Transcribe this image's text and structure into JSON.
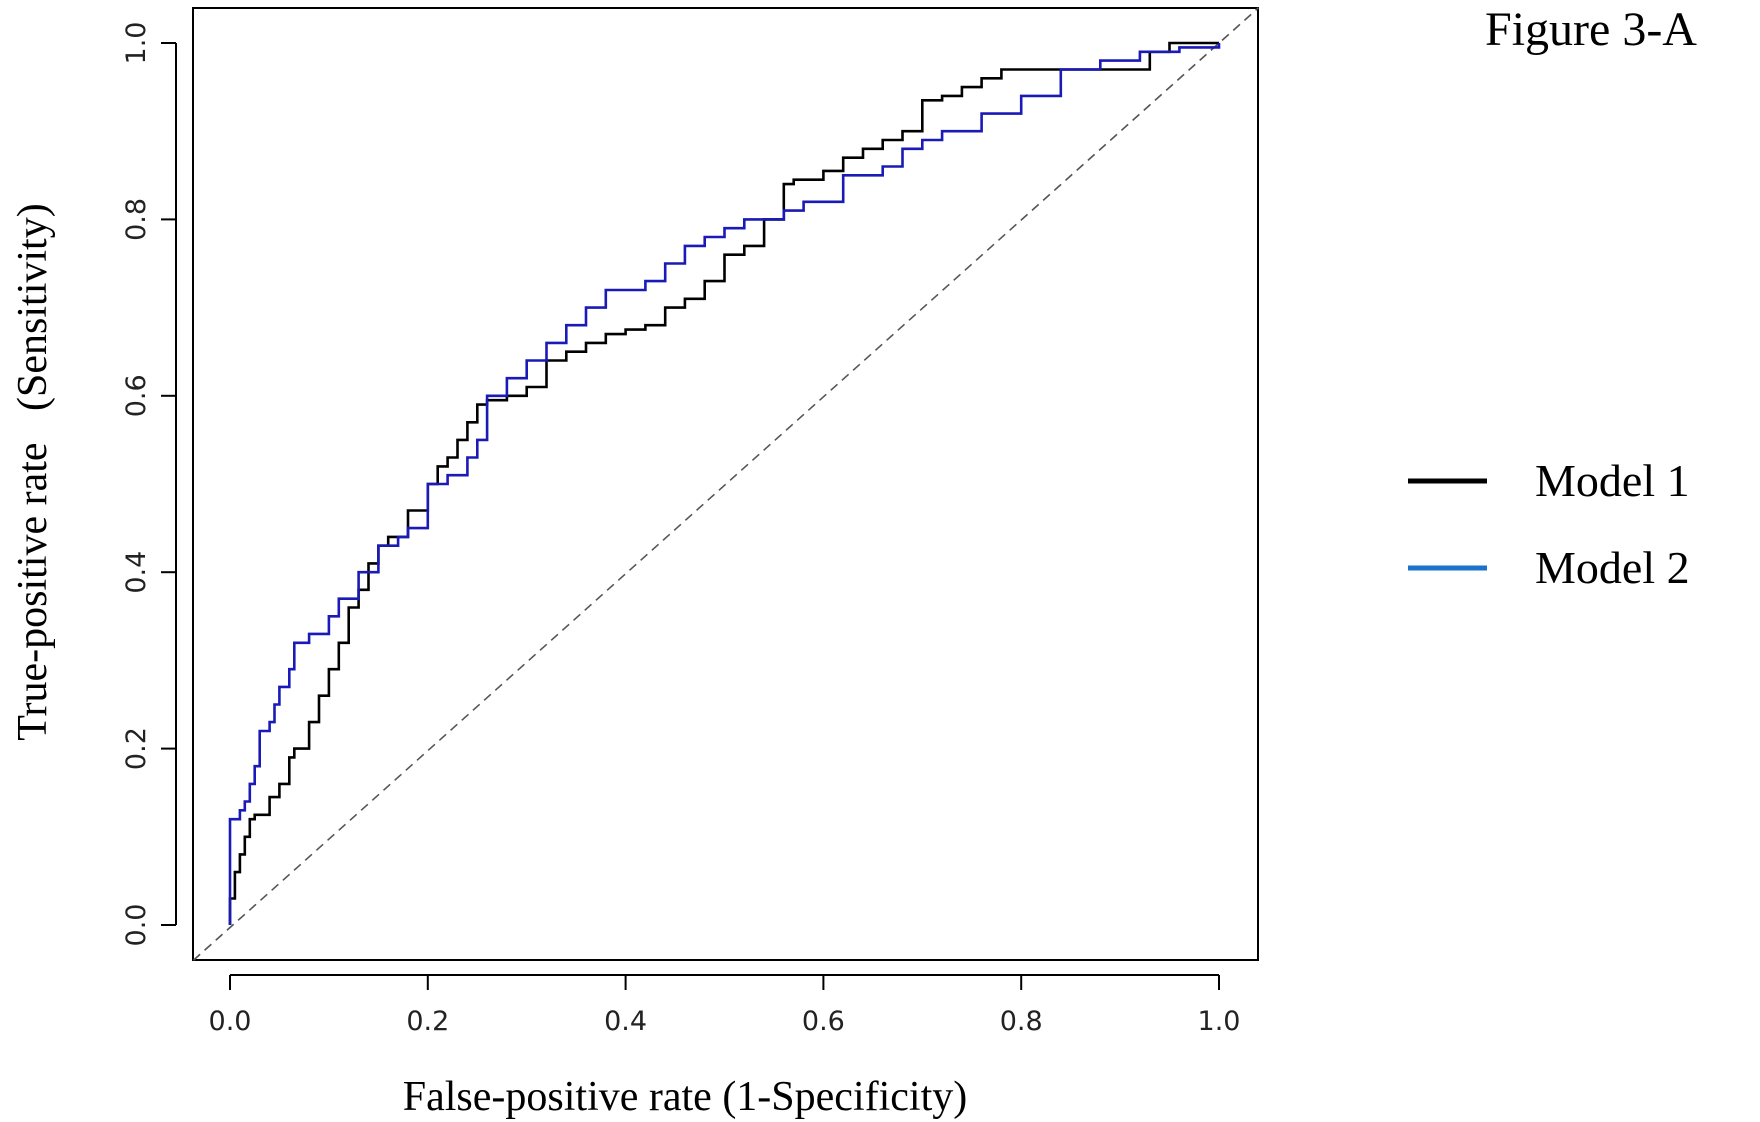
{
  "figure_label": "Figure 3-A",
  "chart_data": {
    "type": "line",
    "title": "",
    "xlabel": "False-positive rate (1-Specificity)",
    "ylabel": "True-positive rate   (Sensitivity)",
    "xlim": [
      0,
      1
    ],
    "ylim": [
      0,
      1
    ],
    "xticks": [
      "0.0",
      "0.2",
      "0.4",
      "0.6",
      "0.8",
      "1.0"
    ],
    "yticks": [
      "0.0",
      "0.2",
      "0.4",
      "0.6",
      "0.8",
      "1.0"
    ],
    "grid": false,
    "legend_position": "right",
    "reference_line": {
      "x": [
        0,
        1
      ],
      "y": [
        0,
        1
      ],
      "style": "dashed",
      "color": "#555555"
    },
    "series": [
      {
        "name": "Model 1",
        "color": "#000000",
        "x": [
          0,
          0,
          0.005,
          0.01,
          0.015,
          0.02,
          0.025,
          0.03,
          0.04,
          0.05,
          0.06,
          0.065,
          0.08,
          0.09,
          0.1,
          0.11,
          0.12,
          0.13,
          0.14,
          0.15,
          0.16,
          0.18,
          0.2,
          0.21,
          0.22,
          0.23,
          0.24,
          0.25,
          0.26,
          0.28,
          0.3,
          0.32,
          0.34,
          0.36,
          0.38,
          0.4,
          0.42,
          0.44,
          0.46,
          0.48,
          0.5,
          0.52,
          0.54,
          0.56,
          0.57,
          0.6,
          0.62,
          0.64,
          0.66,
          0.68,
          0.7,
          0.72,
          0.74,
          0.76,
          0.78,
          0.8,
          0.85,
          0.9,
          0.93,
          0.95,
          1.0
        ],
        "y": [
          0,
          0.03,
          0.06,
          0.08,
          0.1,
          0.12,
          0.125,
          0.125,
          0.145,
          0.16,
          0.19,
          0.2,
          0.23,
          0.26,
          0.29,
          0.32,
          0.36,
          0.38,
          0.41,
          0.43,
          0.44,
          0.47,
          0.5,
          0.52,
          0.53,
          0.55,
          0.57,
          0.59,
          0.595,
          0.6,
          0.61,
          0.64,
          0.65,
          0.66,
          0.67,
          0.675,
          0.68,
          0.7,
          0.71,
          0.73,
          0.76,
          0.77,
          0.8,
          0.84,
          0.845,
          0.855,
          0.87,
          0.88,
          0.89,
          0.9,
          0.935,
          0.94,
          0.95,
          0.96,
          0.97,
          0.97,
          0.97,
          0.97,
          0.99,
          1.0,
          1.0
        ]
      },
      {
        "name": "Model 2",
        "color": "#1a1ab8",
        "x": [
          0,
          0,
          0.01,
          0.015,
          0.02,
          0.025,
          0.03,
          0.04,
          0.045,
          0.05,
          0.06,
          0.065,
          0.08,
          0.1,
          0.11,
          0.13,
          0.15,
          0.17,
          0.18,
          0.2,
          0.22,
          0.24,
          0.25,
          0.26,
          0.28,
          0.3,
          0.32,
          0.34,
          0.36,
          0.38,
          0.4,
          0.42,
          0.44,
          0.46,
          0.48,
          0.5,
          0.52,
          0.54,
          0.56,
          0.58,
          0.6,
          0.62,
          0.64,
          0.66,
          0.68,
          0.7,
          0.72,
          0.76,
          0.8,
          0.84,
          0.88,
          0.92,
          0.96,
          1.0
        ],
        "y": [
          0,
          0.12,
          0.13,
          0.14,
          0.16,
          0.18,
          0.22,
          0.23,
          0.25,
          0.27,
          0.29,
          0.32,
          0.33,
          0.35,
          0.37,
          0.4,
          0.43,
          0.44,
          0.45,
          0.5,
          0.51,
          0.53,
          0.55,
          0.6,
          0.62,
          0.64,
          0.66,
          0.68,
          0.7,
          0.72,
          0.72,
          0.73,
          0.75,
          0.77,
          0.78,
          0.79,
          0.8,
          0.8,
          0.81,
          0.82,
          0.82,
          0.85,
          0.85,
          0.86,
          0.88,
          0.89,
          0.9,
          0.92,
          0.94,
          0.97,
          0.98,
          0.99,
          0.995,
          1.0
        ]
      }
    ]
  }
}
